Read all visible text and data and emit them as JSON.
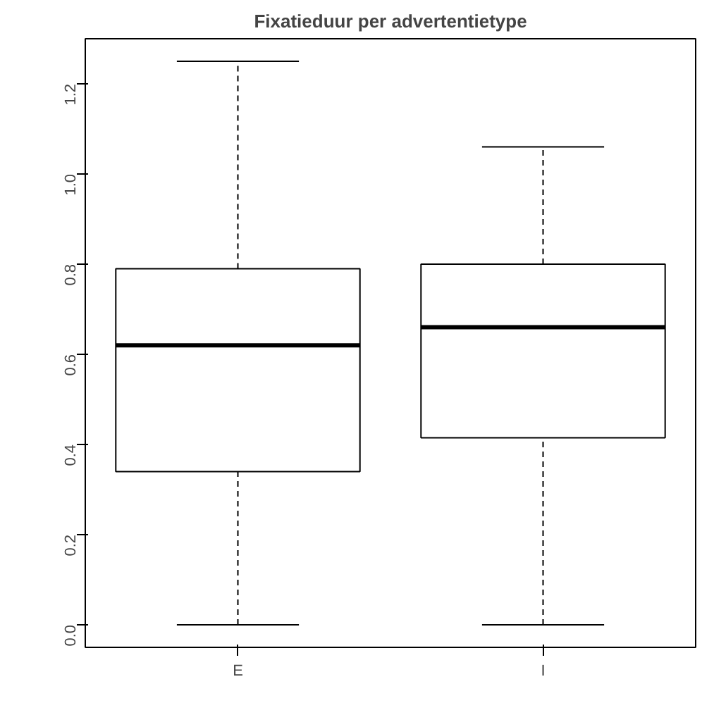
{
  "chart_data": {
    "type": "box",
    "title": "Fixatieduur per advertentietype",
    "categories": [
      "E",
      "I"
    ],
    "boxes": [
      {
        "low": 0,
        "q1": 0.34,
        "median": 0.62,
        "q3": 0.79,
        "high": 1.25
      },
      {
        "low": 0,
        "q1": 0.415,
        "median": 0.66,
        "q3": 0.8,
        "high": 1.06
      }
    ],
    "color": "#ffffff",
    "ylim": [
      -0.05,
      1.3
    ],
    "yticks": [
      {
        "value": 0,
        "label": "0.0"
      },
      0.2,
      0.4,
      0.6,
      0.8,
      {
        "value": 1,
        "label": "1.0"
      },
      1.2
    ],
    "grid": false
  }
}
